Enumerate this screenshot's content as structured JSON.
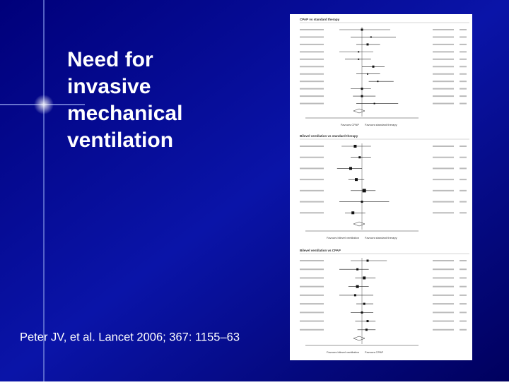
{
  "slide": {
    "title_lines": [
      "Need for",
      "invasive",
      "mechanical",
      "ventilation"
    ],
    "citation": "Peter JV, et al. Lancet 2006; 367: 1155–63"
  },
  "figure": {
    "panels": [
      {
        "heading": "CPAP vs standard therapy",
        "left_label": "Favours CPAP",
        "right_label": "Favours standard therapy"
      },
      {
        "heading": "Bilevel ventilation vs standard therapy",
        "left_label": "Favours bilevel ventilation",
        "right_label": "Favours standard therapy"
      },
      {
        "heading": "Bilevel ventilation vs CPAP",
        "left_label": "Favours bilevel ventilation",
        "right_label": "Favours CPAP"
      }
    ]
  }
}
